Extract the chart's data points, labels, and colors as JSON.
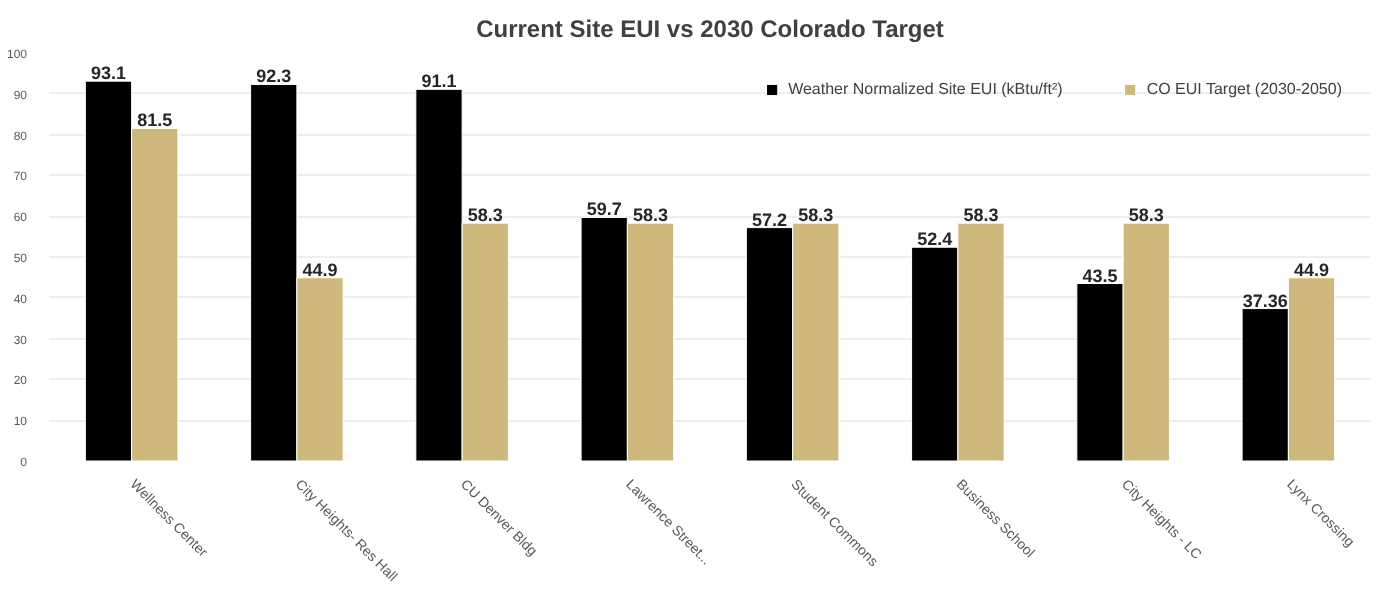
{
  "chart_data": {
    "type": "bar",
    "title": "Current Site EUI vs 2030 Colorado Target",
    "categories": [
      "Wellness Center",
      "City Heights- Res Hall",
      "CU Denver Bldg",
      "Lawrence Street...",
      "Student Commons",
      "Business School",
      "City Heights - LC",
      "Lynx Crossing"
    ],
    "series": [
      {
        "name": "Weather Normalized Site EUI (kBtu/ft²)",
        "color": "#000000",
        "values": [
          93.1,
          92.3,
          91.1,
          59.7,
          57.2,
          52.4,
          43.5,
          37.36
        ]
      },
      {
        "name": "CO EUI Target (2030-2050)",
        "color": "#cfb87c",
        "values": [
          81.5,
          44.9,
          58.3,
          58.3,
          58.3,
          58.3,
          58.3,
          44.9
        ]
      }
    ],
    "ylim": [
      0,
      100
    ],
    "yticks": [
      0,
      10,
      20,
      30,
      40,
      50,
      60,
      70,
      80,
      90,
      100
    ],
    "grid": "y",
    "legend": "top right",
    "data_labels": true
  }
}
